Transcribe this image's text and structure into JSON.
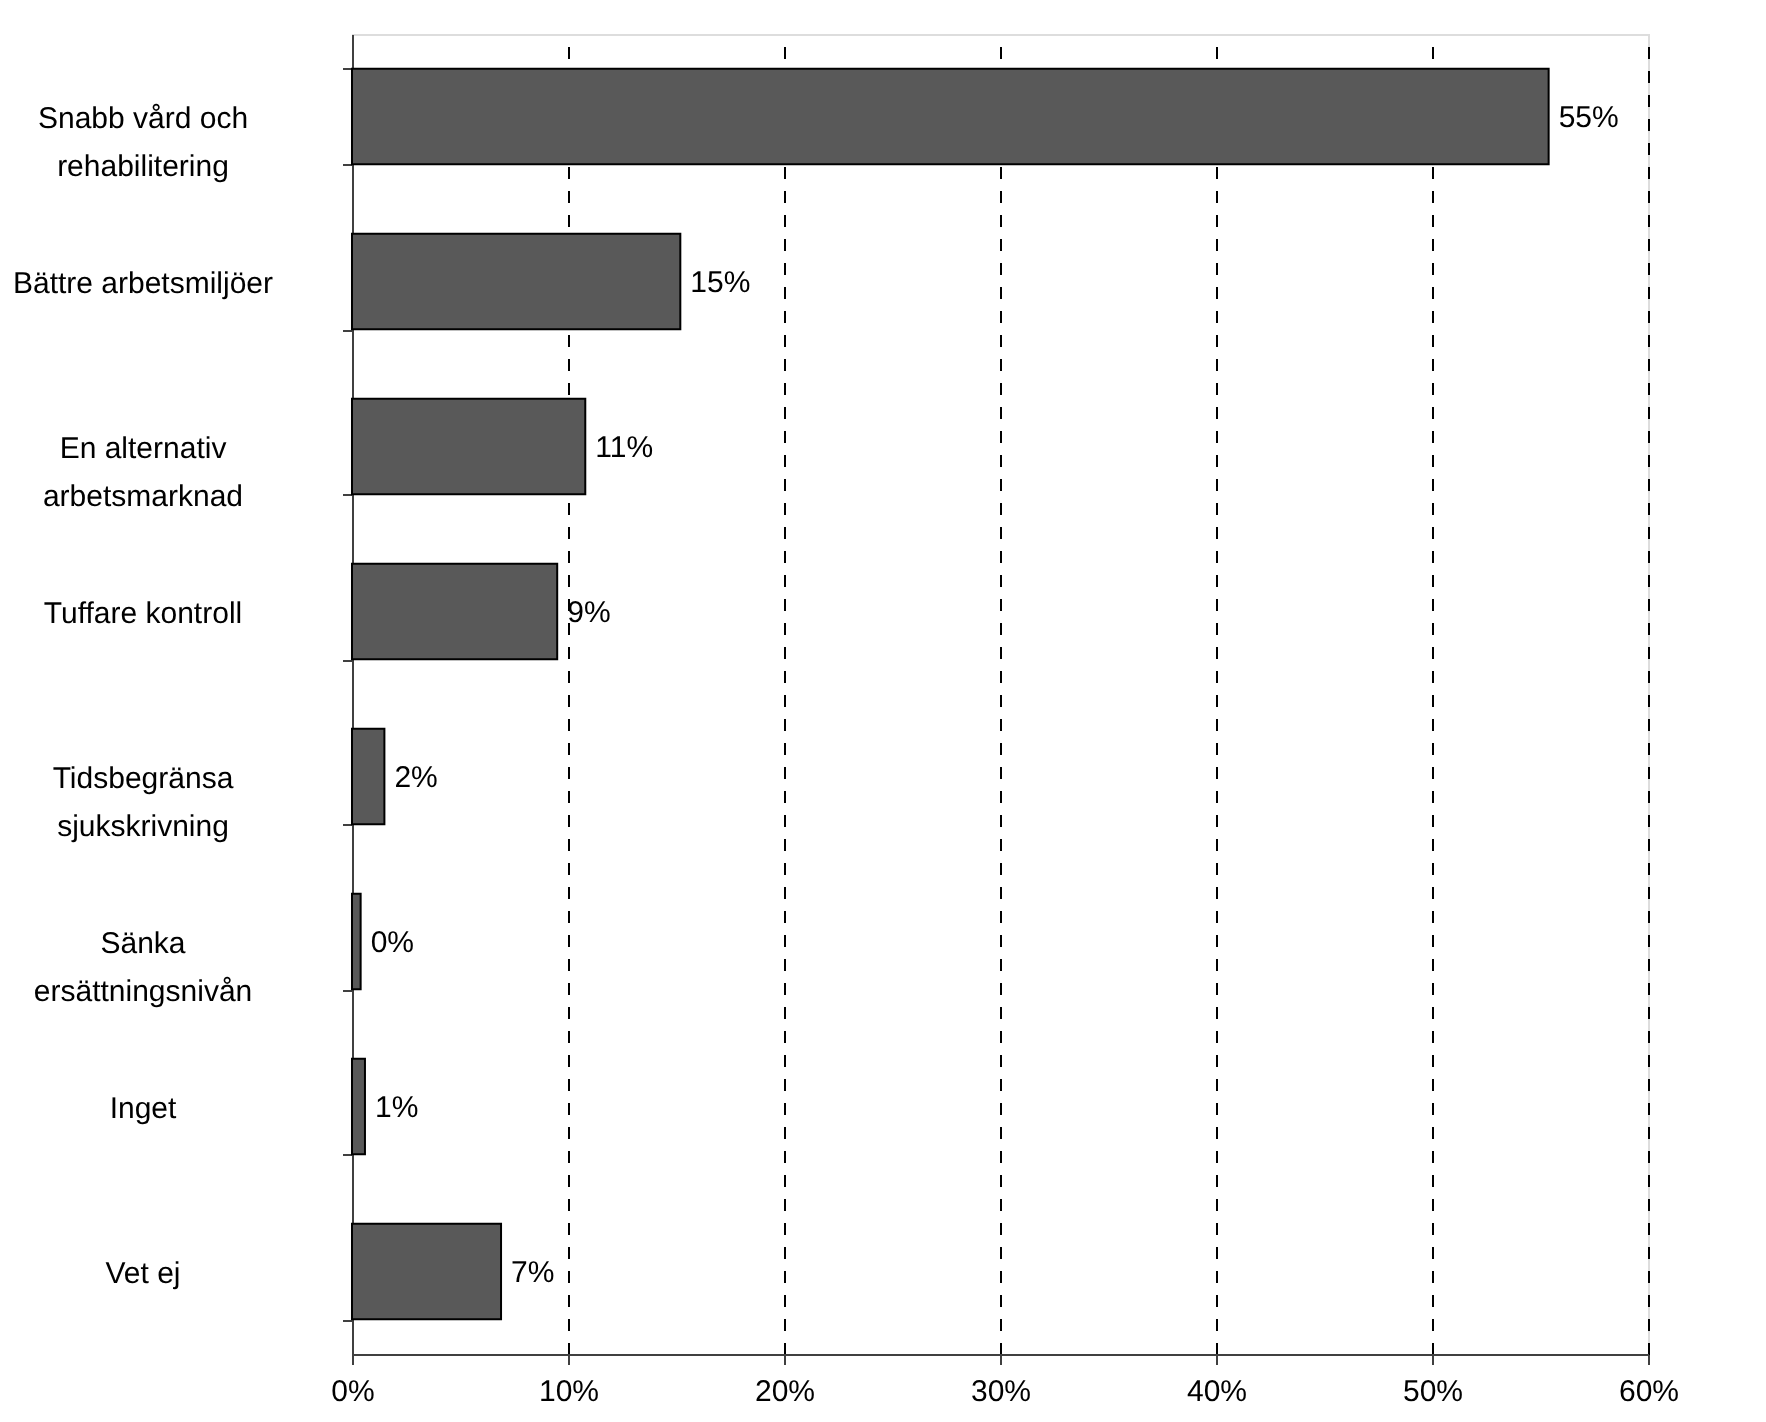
{
  "chart_data": {
    "type": "bar",
    "orientation": "horizontal",
    "categories": [
      "Snabb vård och rehabilitering",
      "Bättre arbetsmiljöer",
      "En alternativ arbetsmarknad",
      "Tuffare kontroll",
      "Tidsbegränsa sjukskrivning",
      "Sänka ersättningsnivån",
      "Inget",
      "Vet ej"
    ],
    "values": [
      55.4,
      15.2,
      10.8,
      9.5,
      1.5,
      0.4,
      0.6,
      6.9
    ],
    "value_labels": [
      "55%",
      "15%",
      "11%",
      "9%",
      "2%",
      "0%",
      "1%",
      "7%"
    ],
    "color": "#595959",
    "xlim": [
      0,
      60
    ],
    "xticks": [
      {
        "value": 0,
        "label": "0%"
      },
      {
        "value": 10,
        "label": "10%"
      },
      {
        "value": 20,
        "label": "20%"
      },
      {
        "value": 30,
        "label": "30%"
      },
      {
        "value": 40,
        "label": "40%"
      },
      {
        "value": 50,
        "label": "50%"
      },
      {
        "value": 60,
        "label": "60%"
      }
    ],
    "grid": "x",
    "line_style": "dashed"
  }
}
